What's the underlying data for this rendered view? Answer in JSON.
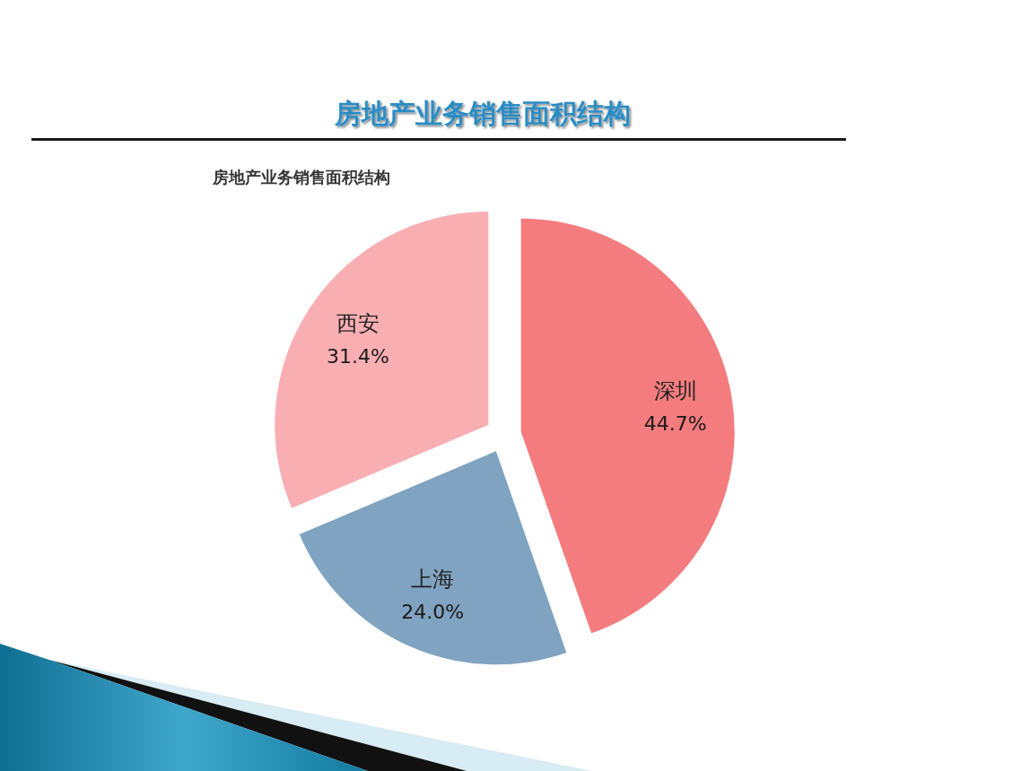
{
  "chart_data": {
    "type": "pie",
    "title": "房地产业务销售面积结构",
    "subtitle": "房地产业务销售面积结构",
    "categories": [
      "深圳",
      "上海",
      "西安"
    ],
    "values": [
      44.7,
      24.0,
      31.4
    ],
    "colors": [
      "#f47c7e",
      "#7fa3c0",
      "#f9aeb2"
    ],
    "value_labels": [
      "44.7%",
      "24.0%",
      "31.4%"
    ]
  }
}
